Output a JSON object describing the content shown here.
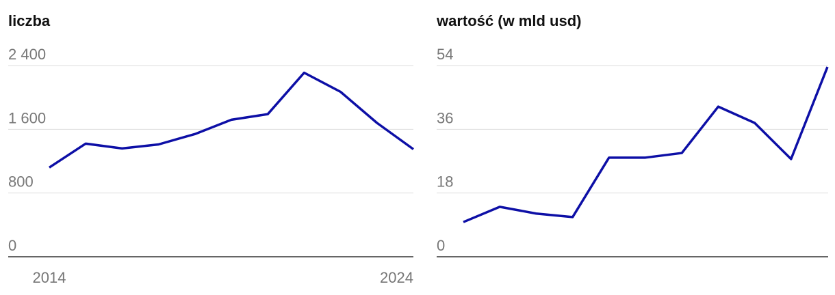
{
  "chart_data": [
    {
      "type": "line",
      "title": "liczba",
      "x": [
        2014,
        2015,
        2016,
        2017,
        2018,
        2019,
        2020,
        2021,
        2022,
        2023,
        2024
      ],
      "xlim": [
        2014,
        2024
      ],
      "xticks": [
        2014,
        2024
      ],
      "ylim": [
        0,
        2400
      ],
      "yticks": [
        0,
        800,
        {
          "value": 1600,
          "label": "1 600"
        },
        {
          "value": 2400,
          "label": "2 400"
        }
      ],
      "grid": true,
      "series": [
        {
          "color": "#0d0fa6",
          "values": [
            1120,
            1420,
            1360,
            1410,
            1540,
            1720,
            1790,
            2310,
            2070,
            1680,
            1350
          ]
        }
      ]
    },
    {
      "type": "line",
      "title": "wartość (w mld usd)",
      "x": [
        2014,
        2015,
        2016,
        2017,
        2018,
        2019,
        2020,
        2021,
        2022,
        2023,
        2024
      ],
      "xlim": [
        2014,
        2024
      ],
      "ylim": [
        0,
        54
      ],
      "yticks": [
        0,
        18,
        36,
        54
      ],
      "grid": true,
      "series": [
        {
          "color": "#0d0fa6",
          "values": [
            9.8,
            14.1,
            12.2,
            11.2,
            28.0,
            28.0,
            29.3,
            42.4,
            37.8,
            27.6,
            53.6
          ]
        }
      ]
    }
  ]
}
